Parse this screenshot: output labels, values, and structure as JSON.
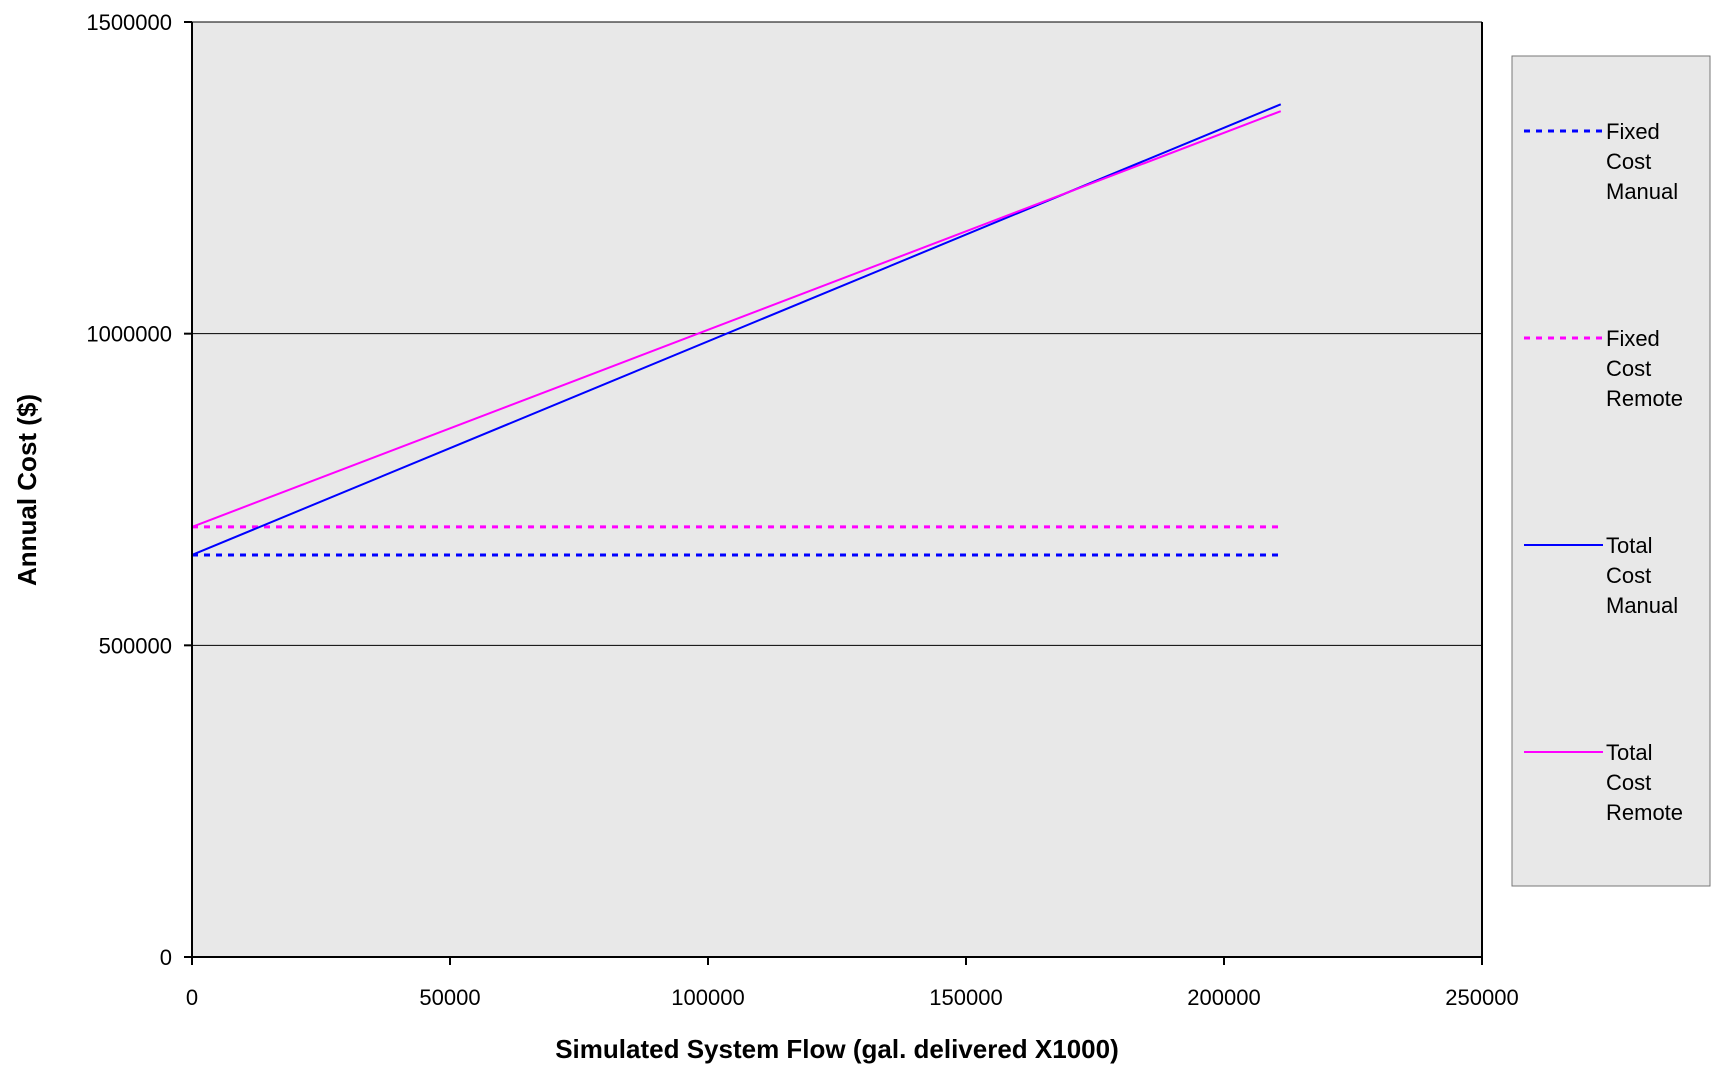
{
  "chart_data": {
    "type": "line",
    "title": "",
    "xlabel": "Simulated System Flow (gal. delivered X1000)",
    "ylabel": "Annual Cost ($)",
    "xlim": [
      0,
      250000
    ],
    "ylim": [
      0,
      1500000
    ],
    "xticks": [
      "0",
      "50000",
      "100000",
      "150000",
      "200000",
      "250000"
    ],
    "yticks": [
      "0",
      "500000",
      "1000000",
      "1500000"
    ],
    "grid": "horizontal",
    "legend_position": "right",
    "series": [
      {
        "name": "Fixed Cost Manual",
        "legend_lines": [
          "Fixed",
          "Cost",
          "Manual"
        ],
        "color": "#0000ff",
        "style": "dotted",
        "x": [
          0,
          211000
        ],
        "y": [
          645000,
          645000
        ]
      },
      {
        "name": "Fixed Cost Remote",
        "legend_lines": [
          "Fixed",
          "Cost",
          "Remote"
        ],
        "color": "#ff00ff",
        "style": "dotted",
        "x": [
          0,
          211000
        ],
        "y": [
          690000,
          690000
        ]
      },
      {
        "name": "Total Cost Manual",
        "legend_lines": [
          "Total",
          "Cost",
          "Manual"
        ],
        "color": "#0000ff",
        "style": "solid",
        "x": [
          0,
          211000
        ],
        "y": [
          645000,
          1368000
        ]
      },
      {
        "name": "Total Cost Remote",
        "legend_lines": [
          "Total",
          "Cost",
          "Remote"
        ],
        "color": "#ff00ff",
        "style": "solid",
        "x": [
          0,
          211000
        ],
        "y": [
          690000,
          1357000
        ]
      }
    ]
  }
}
